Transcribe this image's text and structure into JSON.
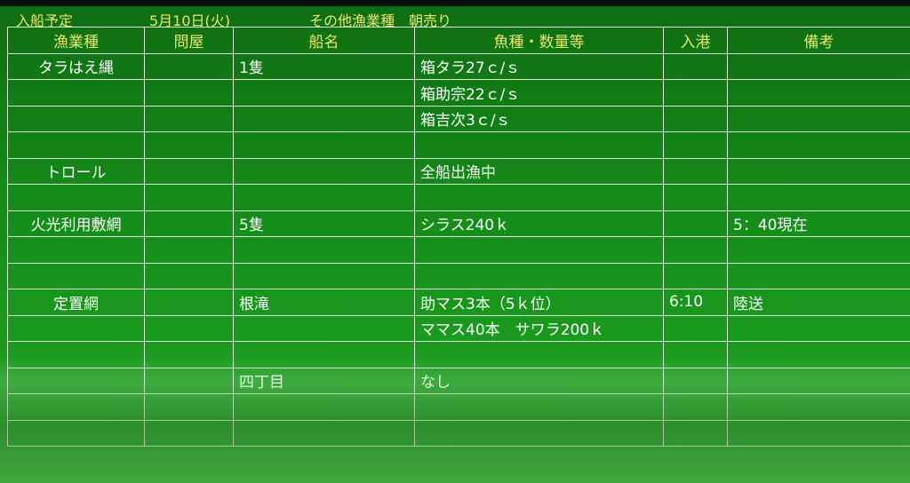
{
  "title_bar": {
    "label": "入船予定",
    "date": "5月10日(火)",
    "category": "その他漁業種　朝売り"
  },
  "columns": [
    "漁業種",
    "問屋",
    "船名",
    "魚種・数量等",
    "入港",
    "備考"
  ],
  "rows": [
    [
      "タラはえ縄",
      "",
      "1隻",
      "箱タラ27ｃ/ｓ",
      "",
      ""
    ],
    [
      "",
      "",
      "",
      "箱助宗22ｃ/ｓ",
      "",
      ""
    ],
    [
      "",
      "",
      "",
      "箱吉次3ｃ/ｓ",
      "",
      ""
    ],
    [
      "",
      "",
      "",
      "",
      "",
      ""
    ],
    [
      "トロール",
      "",
      "",
      "全船出漁中",
      "",
      ""
    ],
    [
      "",
      "",
      "",
      "",
      "",
      ""
    ],
    [
      "火光利用敷網",
      "",
      "5隻",
      "シラス240ｋ",
      "",
      "5：40現在"
    ],
    [
      "",
      "",
      "",
      "",
      "",
      ""
    ],
    [
      "",
      "",
      "",
      "",
      "",
      ""
    ],
    [
      "定置網",
      "",
      "根滝",
      "助マス3本（5ｋ位）",
      "6:10",
      "陸送"
    ],
    [
      "",
      "",
      "",
      "ママス40本　サワラ200ｋ",
      "",
      ""
    ],
    [
      "",
      "",
      "",
      "",
      "",
      ""
    ],
    [
      "",
      "",
      "四丁目",
      "なし",
      "",
      ""
    ],
    [
      "",
      "",
      "",
      "",
      "",
      ""
    ],
    [
      "",
      "",
      "",
      "",
      "",
      ""
    ]
  ],
  "colors": {
    "board": "#148a18",
    "header_text": "#e8e86a",
    "cell_text": "#ffffff",
    "grid_line": "#d8ecd8"
  }
}
